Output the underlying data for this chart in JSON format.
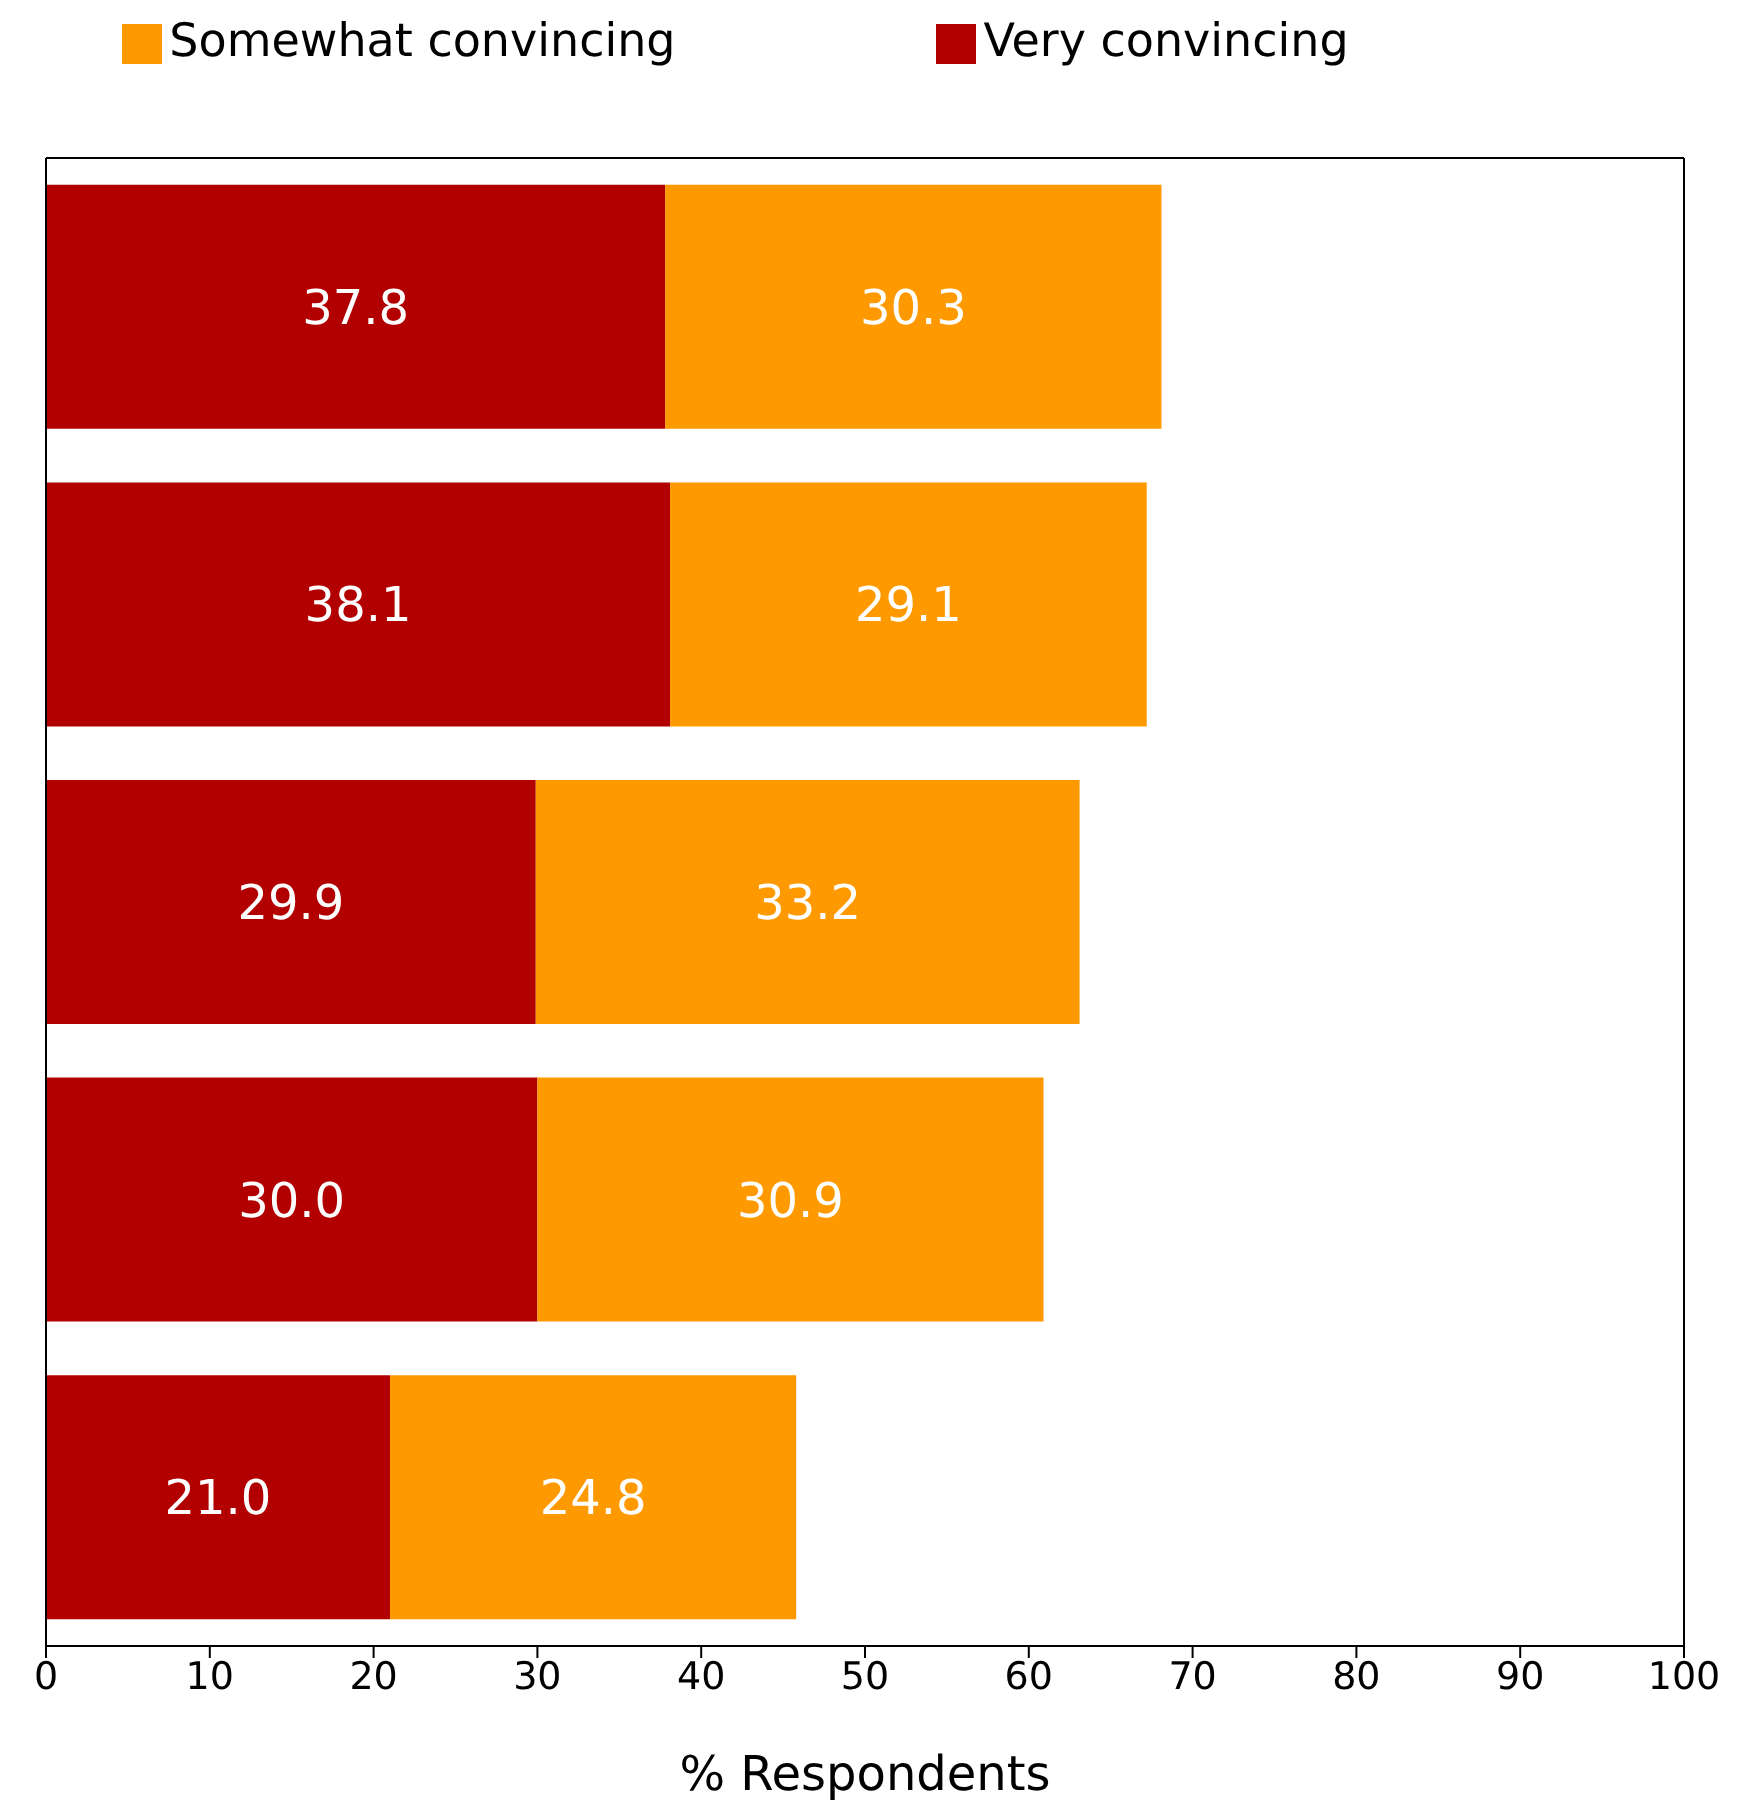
{
  "chart_data": {
    "type": "bar",
    "orientation": "horizontal",
    "stacked": true,
    "categories": [
      null,
      null,
      null,
      null,
      null
    ],
    "series": [
      {
        "name": "Very convincing",
        "color": "#b20000",
        "values": [
          37.8,
          38.1,
          29.9,
          30.0,
          21.0
        ],
        "value_labels": [
          "37.8",
          "38.1",
          "29.9",
          "30.0",
          "21.0"
        ]
      },
      {
        "name": "Somewhat convincing",
        "color": "#ff9900",
        "values": [
          30.3,
          29.1,
          33.2,
          30.9,
          24.8
        ],
        "value_labels": [
          "30.3",
          "29.1",
          "33.2",
          "30.9",
          "24.8"
        ]
      }
    ],
    "xlabel": "% Respondents",
    "xlim": [
      0,
      100
    ],
    "xticks": [
      0,
      10,
      20,
      30,
      40,
      50,
      60,
      70,
      80,
      90,
      100
    ],
    "legend": "top",
    "grid": false
  }
}
